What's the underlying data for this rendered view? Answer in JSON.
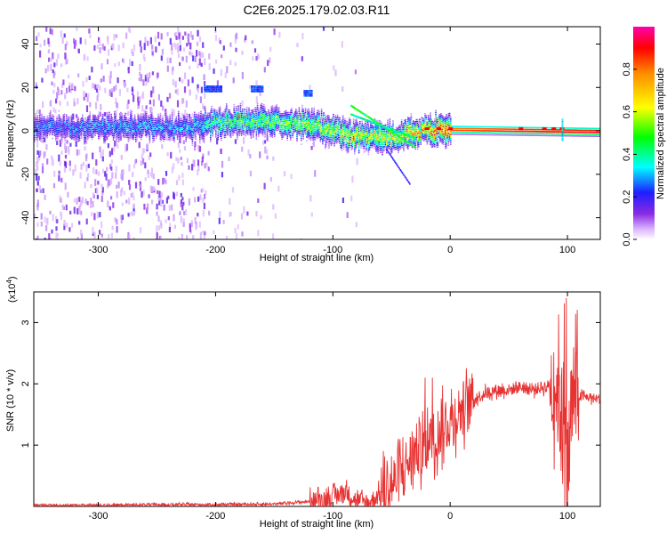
{
  "title": "C2E6.2025.179.02.03.R11",
  "chart_data": [
    {
      "type": "heatmap",
      "xlabel": "Height of straight line (km)",
      "ylabel": "Frequency (Hz)",
      "xlim": [
        -355,
        128
      ],
      "ylim": [
        -50,
        48
      ],
      "xticks": [
        -300,
        -200,
        -100,
        0,
        100
      ],
      "yticks": [
        -40,
        -20,
        0,
        20,
        40
      ],
      "colorbar": {
        "label": "Normalized spectral amplitude",
        "range": [
          0.0,
          1.0
        ],
        "ticks": [
          0.0,
          0.2,
          0.4,
          0.6,
          0.8
        ]
      },
      "ridge": [
        {
          "x": -355,
          "y": 2,
          "amp": 0.25
        },
        {
          "x": -300,
          "y": 2,
          "amp": 0.28
        },
        {
          "x": -220,
          "y": 2,
          "amp": 0.3
        },
        {
          "x": -200,
          "y": 4,
          "amp": 0.45
        },
        {
          "x": -160,
          "y": 5,
          "amp": 0.5
        },
        {
          "x": -120,
          "y": 3,
          "amp": 0.55
        },
        {
          "x": -80,
          "y": -2,
          "amp": 0.6
        },
        {
          "x": -50,
          "y": -3,
          "amp": 0.6
        },
        {
          "x": -30,
          "y": 0,
          "amp": 0.7
        },
        {
          "x": 0,
          "y": 1,
          "amp": 0.9
        },
        {
          "x": 128,
          "y": 0,
          "amp": 1.0
        }
      ]
    },
    {
      "type": "line",
      "xlabel": "Height of straight line (km)",
      "ylabel": "SNR (10 * v/v)",
      "scale_label": "(x10",
      "scale_exp": "4",
      "scale_close": ")",
      "xlim": [
        -355,
        128
      ],
      "ylim": [
        0,
        3.5
      ],
      "xticks": [
        -300,
        -200,
        -100,
        0,
        100
      ],
      "yticks": [
        1,
        2,
        3
      ],
      "line_color": "#e83232",
      "series": [
        {
          "x": [
            -355,
            -300,
            -250,
            -200,
            -150,
            -120,
            -100,
            -90,
            -80,
            -70,
            -60,
            -50,
            -40,
            -30,
            -20,
            -10,
            0,
            10,
            20,
            30,
            40,
            50,
            60,
            70,
            80,
            90,
            95,
            100,
            105,
            110,
            128
          ],
          "y": [
            0.02,
            0.02,
            0.03,
            0.03,
            0.04,
            0.08,
            0.15,
            0.25,
            0.1,
            0.05,
            0.2,
            0.35,
            0.6,
            0.9,
            1.0,
            1.2,
            1.4,
            1.6,
            1.75,
            1.85,
            1.9,
            1.9,
            1.95,
            1.9,
            1.95,
            2.0,
            1.5,
            0.5,
            1.9,
            1.8,
            1.75
          ]
        }
      ]
    }
  ]
}
